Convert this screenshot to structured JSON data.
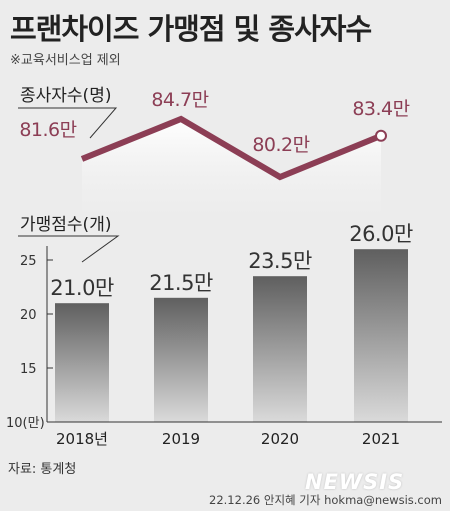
{
  "title": "프랜차이즈 가맹점 및 종사자수",
  "note": "※교육서비스업 제외",
  "source": "자료: 통계청",
  "watermark": "NEWSIS",
  "credit": "22.12.26 안지혜 기자  hokma@newsis.com",
  "colors": {
    "line": "#8c3e55",
    "line_value_text": "#8c3e55",
    "bar_top": "#5f5f5f",
    "bar_bottom": "#d9d9d9",
    "background": "#ececec"
  },
  "chart_data": [
    {
      "type": "line",
      "series_label": "종사자수(명)",
      "categories": [
        "2018년",
        "2019",
        "2020",
        "2021"
      ],
      "values": [
        81.6,
        84.7,
        80.2,
        83.4
      ],
      "value_labels": [
        "81.6만",
        "84.7만",
        "80.2만",
        "83.4만"
      ]
    },
    {
      "type": "bar",
      "series_label": "가맹점수(개)",
      "categories": [
        "2018년",
        "2019",
        "2020",
        "2021"
      ],
      "values": [
        21.0,
        21.5,
        23.5,
        26.0
      ],
      "value_labels": [
        "21.0만",
        "21.5만",
        "23.5만",
        "26.0만"
      ],
      "y_ticks": [
        "25",
        "20",
        "15",
        "10(만)"
      ],
      "y_tick_values": [
        25,
        20,
        15,
        10
      ],
      "ylim": [
        10,
        27
      ]
    }
  ]
}
